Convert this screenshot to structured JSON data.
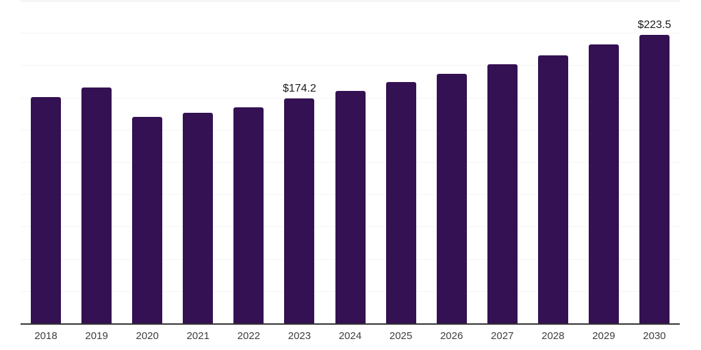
{
  "chart_data": {
    "type": "bar",
    "title": "",
    "xlabel": "",
    "ylabel": "",
    "categories": [
      "2018",
      "2019",
      "2020",
      "2021",
      "2022",
      "2023",
      "2024",
      "2025",
      "2026",
      "2027",
      "2028",
      "2029",
      "2030"
    ],
    "values": [
      175.4,
      182.6,
      160.1,
      162.9,
      167.6,
      174.2,
      179.9,
      186.9,
      193.2,
      200.6,
      207.7,
      216.0,
      223.5
    ],
    "data_labels": [
      {
        "category": "2023",
        "text": "$174.2"
      },
      {
        "category": "2030",
        "text": "$223.5"
      }
    ],
    "ylim": [
      0,
      250
    ],
    "gridline_step": 25,
    "grid": "horizontal",
    "legend": "none",
    "y_axis_labels_shown": false,
    "colors": {
      "bar": "#341152",
      "axis_line": "#333333",
      "gridline": "#f4f4f4",
      "top_gridline": "#e7e7e7",
      "tick_label": "#3d3d3d",
      "data_label": "#1a1a1a",
      "background": "#ffffff"
    }
  }
}
